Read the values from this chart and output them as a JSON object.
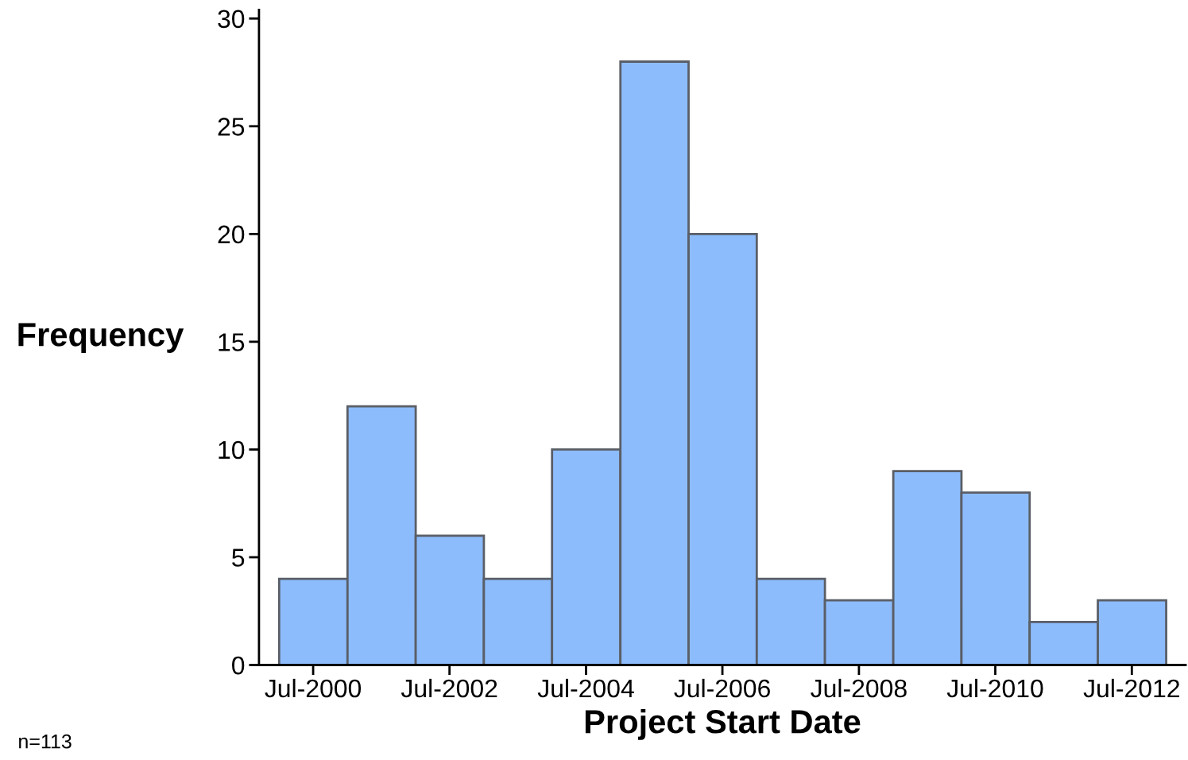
{
  "chart_data": {
    "type": "histogram",
    "xlabel": "Project Start Date",
    "ylabel": "Frequency",
    "bins": [
      "2000-01-01",
      "2001-01-01",
      "2002-01-01",
      "2003-01-01",
      "2004-01-01",
      "2005-01-01",
      "2006-01-01",
      "2007-01-01",
      "2008-01-01",
      "2009-01-01",
      "2010-01-01",
      "2011-01-01",
      "2012-01-01",
      "2013-01-01"
    ],
    "values": [
      4,
      12,
      6,
      4,
      10,
      28,
      20,
      4,
      3,
      9,
      8,
      2,
      3
    ],
    "color": "#8dbcfd",
    "xlim": [
      "1999-09-15",
      "2013-04-15"
    ],
    "xticks": [
      {
        "value": "2000-07-01",
        "label": "Jul-2000"
      },
      {
        "value": "2002-07-01",
        "label": "Jul-2002"
      },
      {
        "value": "2004-07-01",
        "label": "Jul-2004"
      },
      {
        "value": "2006-07-01",
        "label": "Jul-2006"
      },
      {
        "value": "2008-07-01",
        "label": "Jul-2008"
      },
      {
        "value": "2010-07-01",
        "label": "Jul-2010"
      },
      {
        "value": "2012-07-01",
        "label": "Jul-2012"
      }
    ],
    "ylim": [
      0,
      30.4
    ],
    "yticks": [
      0,
      5,
      10,
      15,
      20,
      25,
      30
    ],
    "annotations": [
      "n=113"
    ]
  }
}
